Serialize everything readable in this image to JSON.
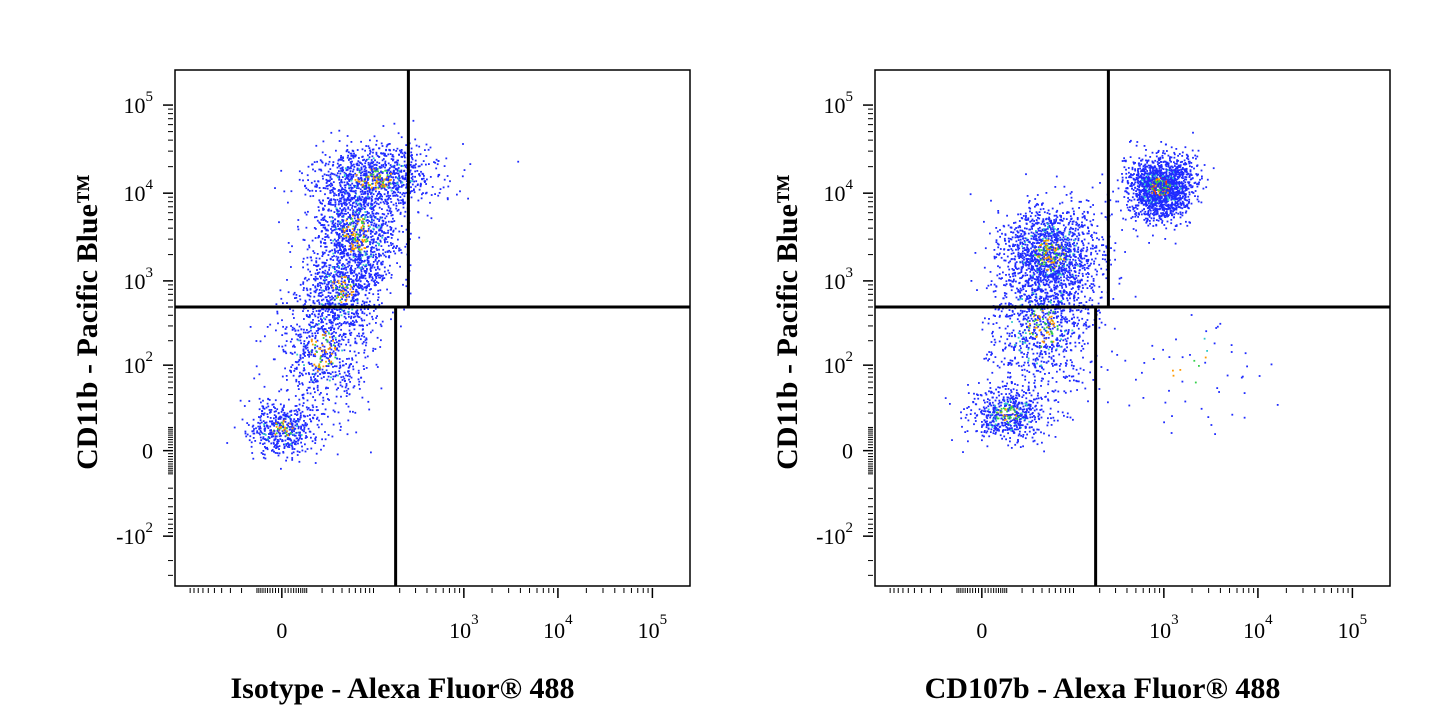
{
  "chart_data": [
    {
      "type": "scatter",
      "xlabel": "Isotype - Alexa Fluor® 488",
      "ylabel": "CD11b - Pacific Blue™",
      "x_scale": "biexponential",
      "y_scale": "biexponential",
      "x_ticks": [
        {
          "value": 0,
          "base": "0",
          "exp": ""
        },
        {
          "value": 1000,
          "base": "10",
          "exp": "3"
        },
        {
          "value": 10000,
          "base": "10",
          "exp": "4"
        },
        {
          "value": 100000,
          "base": "10",
          "exp": "5"
        }
      ],
      "y_ticks": [
        {
          "value": -100,
          "base": "-10",
          "exp": "2"
        },
        {
          "value": 0,
          "base": "0",
          "exp": ""
        },
        {
          "value": 100,
          "base": "10",
          "exp": "2"
        },
        {
          "value": 1000,
          "base": "10",
          "exp": "3"
        },
        {
          "value": 10000,
          "base": "10",
          "exp": "4"
        },
        {
          "value": 100000,
          "base": "10",
          "exp": "5"
        }
      ],
      "quadrant_gate": {
        "y_split": 500,
        "x_split_upper": 250,
        "x_split_lower": 180
      },
      "populations": [
        {
          "x_center": 100,
          "y_center": 15000,
          "count": 1000,
          "spread_x": 55,
          "spread_y": 30
        },
        {
          "x_center": 60,
          "y_center": 3500,
          "count": 1200,
          "spread_x": 40,
          "spread_y": 55
        },
        {
          "x_center": 40,
          "y_center": 800,
          "count": 600,
          "spread_x": 35,
          "spread_y": 40
        },
        {
          "x_center": 20,
          "y_center": 150,
          "count": 700,
          "spread_x": 40,
          "spread_y": 60
        },
        {
          "x_center": 0,
          "y_center": 10,
          "count": 500,
          "spread_x": 30,
          "spread_y": 25
        }
      ],
      "grid": false,
      "legend": "none"
    },
    {
      "type": "scatter",
      "xlabel": "CD107b - Alexa Fluor® 488",
      "ylabel": "CD11b - Pacific Blue™",
      "x_scale": "biexponential",
      "y_scale": "biexponential",
      "x_ticks": [
        {
          "value": 0,
          "base": "0",
          "exp": ""
        },
        {
          "value": 1000,
          "base": "10",
          "exp": "3"
        },
        {
          "value": 10000,
          "base": "10",
          "exp": "4"
        },
        {
          "value": 100000,
          "base": "10",
          "exp": "5"
        }
      ],
      "y_ticks": [
        {
          "value": -100,
          "base": "-10",
          "exp": "2"
        },
        {
          "value": 0,
          "base": "0",
          "exp": ""
        },
        {
          "value": 100,
          "base": "10",
          "exp": "2"
        },
        {
          "value": 1000,
          "base": "10",
          "exp": "3"
        },
        {
          "value": 10000,
          "base": "10",
          "exp": "4"
        },
        {
          "value": 100000,
          "base": "10",
          "exp": "5"
        }
      ],
      "quadrant_gate": {
        "y_split": 500,
        "x_split_upper": 250,
        "x_split_lower": 180
      },
      "populations": [
        {
          "x_center": 900,
          "y_center": 12000,
          "count": 1700,
          "spread_x": 30,
          "spread_y": 28
        },
        {
          "x_center": 50,
          "y_center": 2000,
          "count": 1600,
          "spread_x": 45,
          "spread_y": 45
        },
        {
          "x_center": 40,
          "y_center": 300,
          "count": 900,
          "spread_x": 45,
          "spread_y": 60
        },
        {
          "x_center": 10,
          "y_center": 20,
          "count": 600,
          "spread_x": 35,
          "spread_y": 25
        },
        {
          "x_center": 2000,
          "y_center": 80,
          "count": 60,
          "spread_x": 70,
          "spread_y": 60
        }
      ],
      "grid": false,
      "legend": "none"
    }
  ]
}
